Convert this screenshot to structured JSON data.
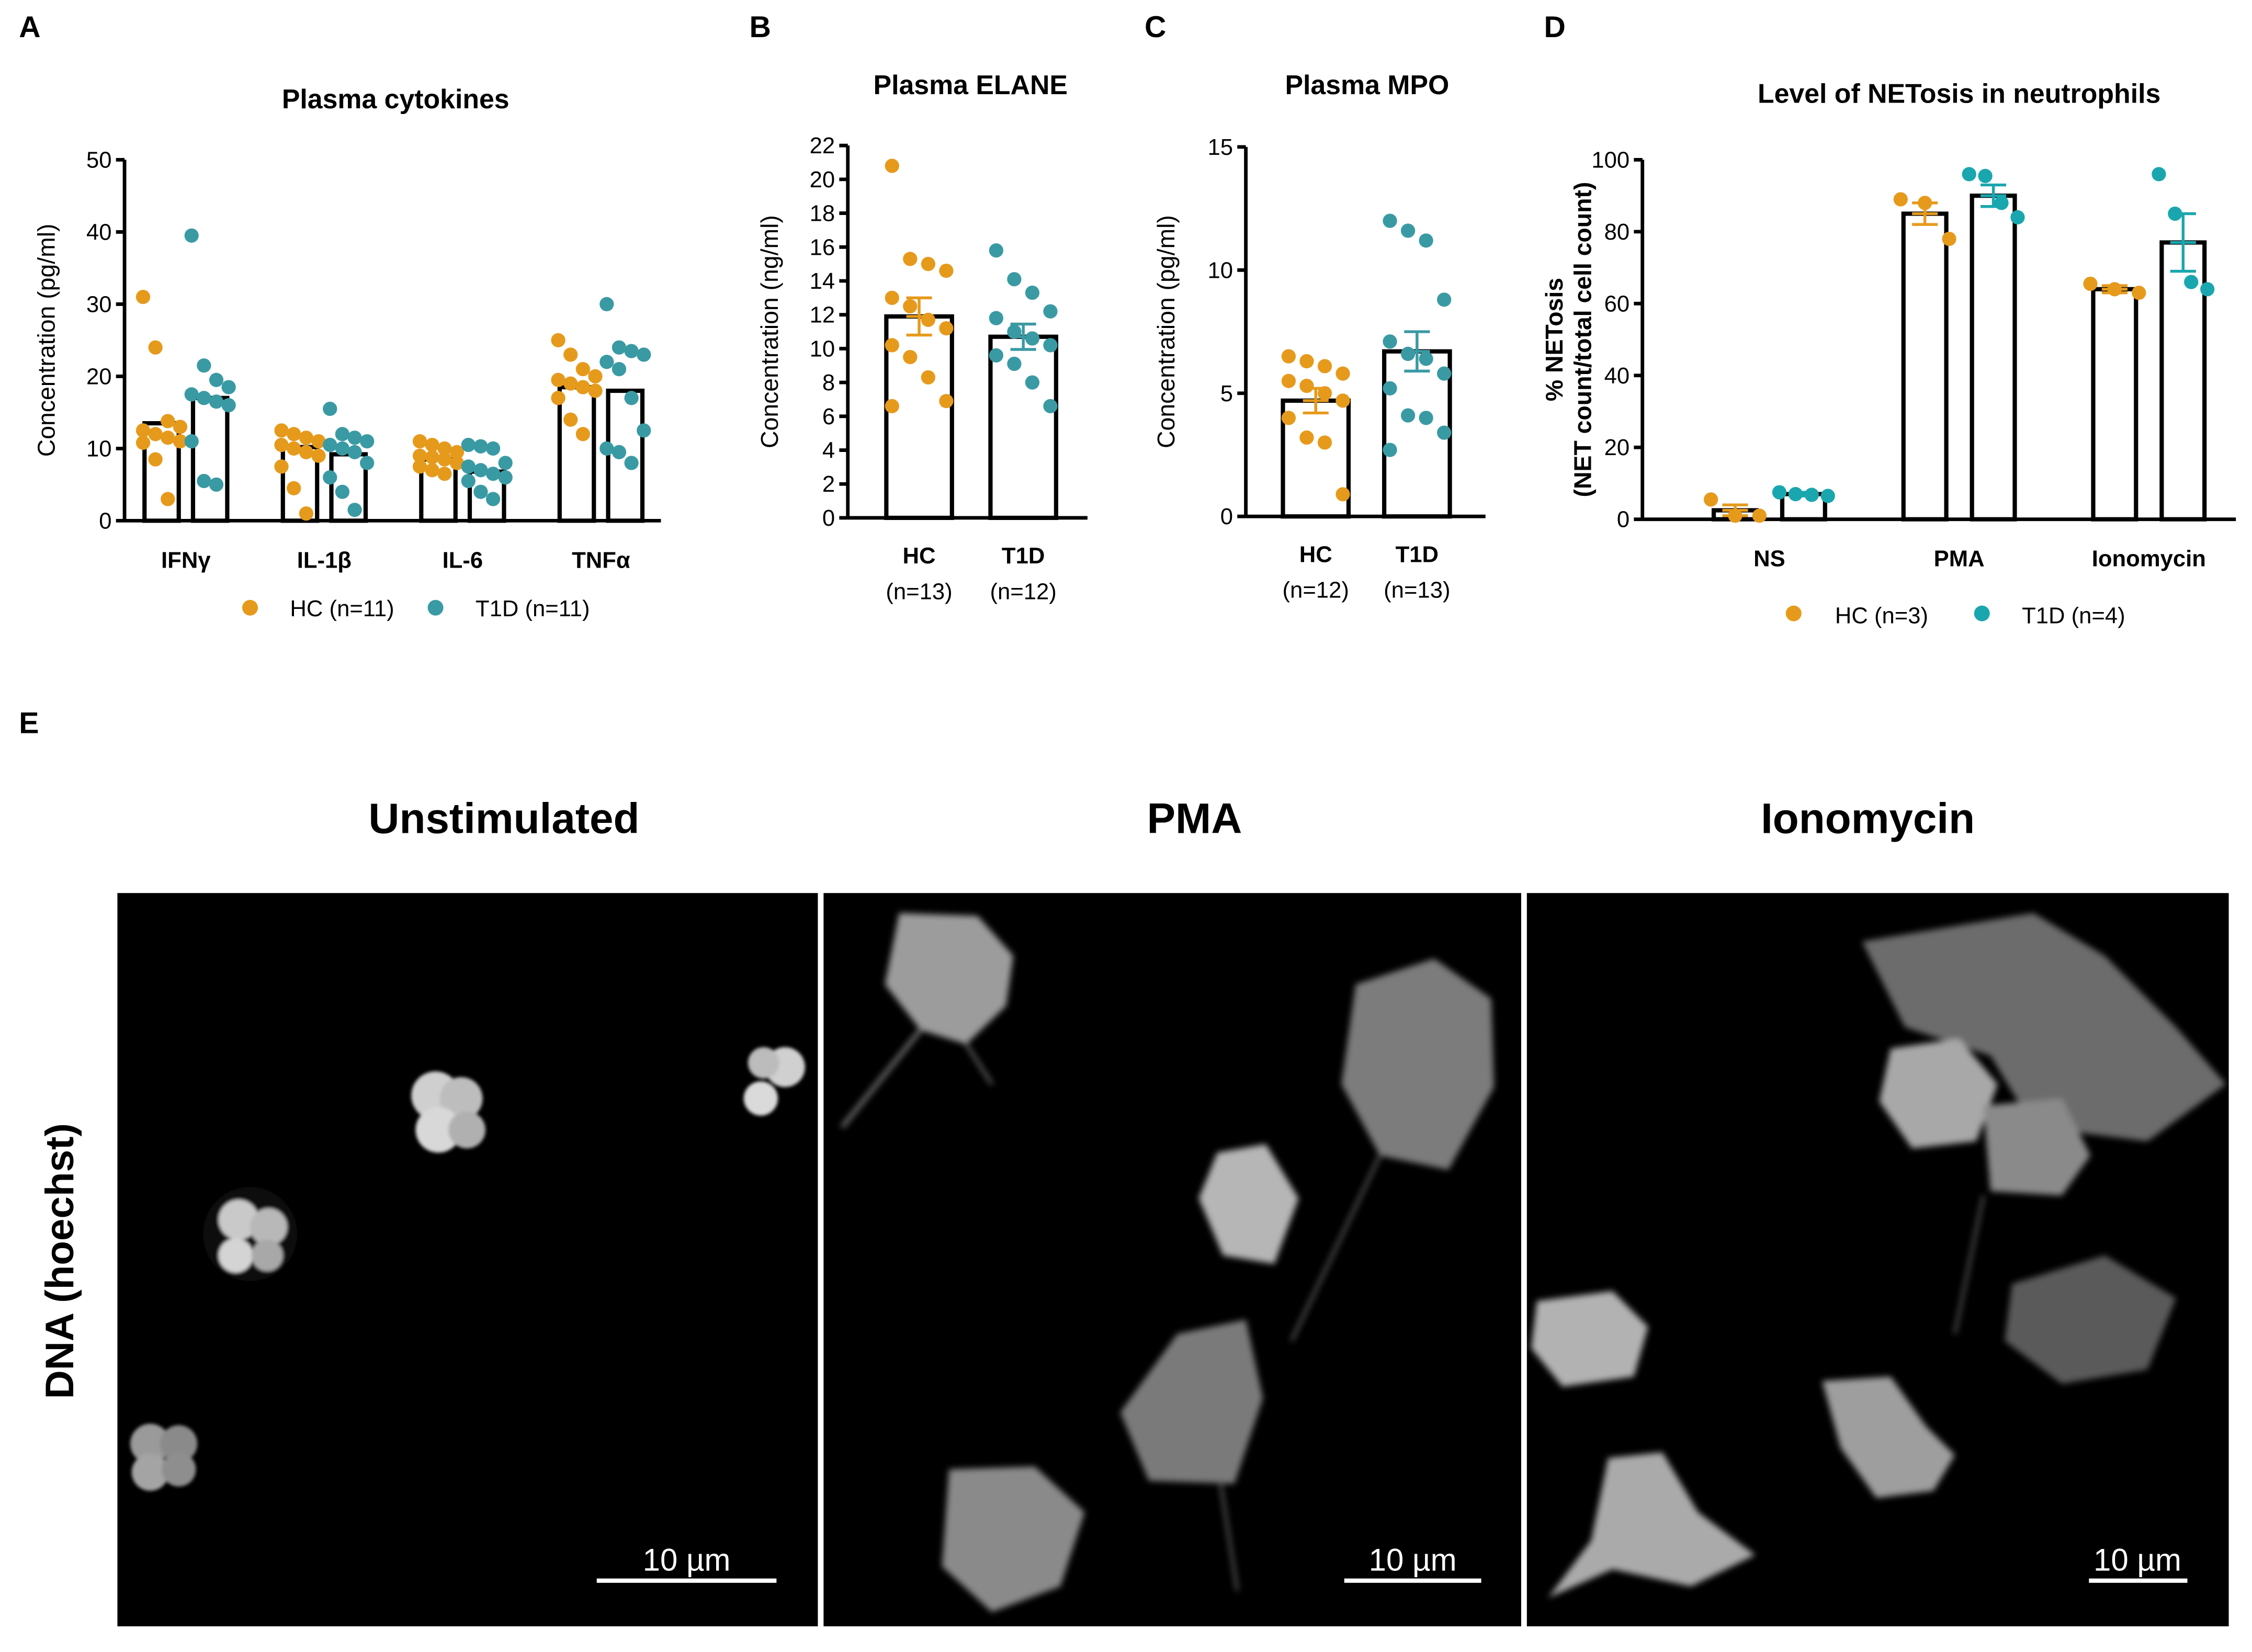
{
  "colors": {
    "hc": "#E69A1C",
    "t1d": "#3A9AA4",
    "t1d_bright": "#1AA6AE"
  },
  "panels": {
    "A": {
      "label": "A",
      "title": "Plasma cytokines"
    },
    "B": {
      "label": "B",
      "title": "Plasma ELANE"
    },
    "C": {
      "label": "C",
      "title": "Plasma MPO"
    },
    "D": {
      "label": "D",
      "title": "Level of NETosis in neutrophils"
    },
    "E": {
      "label": "E",
      "row_label": "DNA (hoechst)",
      "images": [
        {
          "title": "Unstimulated",
          "scale": "10 µm"
        },
        {
          "title": "PMA",
          "scale": "10 µm"
        },
        {
          "title": "Ionomycin",
          "scale": "10 µm"
        }
      ]
    }
  },
  "chart_data": [
    {
      "id": "A",
      "type": "bar",
      "title": "Plasma cytokines",
      "ylabel": "Concentration (pg/ml)",
      "ylim": [
        0,
        50
      ],
      "yticks": [
        0,
        10,
        20,
        30,
        40,
        50
      ],
      "categories": [
        "IFNγ",
        "IL-1β",
        "IL-6",
        "TNFα"
      ],
      "legend": [
        "HC (n=11)",
        "T1D (n=11)"
      ],
      "series": [
        {
          "name": "HC (n=11)",
          "means": [
            13.5,
            10.2,
            8.5,
            18.5
          ],
          "points": [
            [
              31,
              24,
              13.8,
              13,
              12.5,
              12,
              11.5,
              11,
              10.8,
              8.5,
              3
            ],
            [
              12.5,
              12,
              11.5,
              11,
              10.5,
              10,
              9.5,
              9,
              7.5,
              4.5,
              1
            ],
            [
              11,
              10.5,
              10,
              9.5,
              9,
              8.8,
              8.5,
              8,
              7.5,
              7,
              6.5
            ],
            [
              25,
              23,
              21,
              20,
              19.5,
              19,
              18.5,
              18,
              17,
              14,
              12
            ]
          ]
        },
        {
          "name": "T1D (n=11)",
          "means": [
            17,
            9.2,
            6.8,
            18
          ],
          "points": [
            [
              39.5,
              21.5,
              19.5,
              18.5,
              17.5,
              17,
              16.5,
              16,
              11,
              5.5,
              5
            ],
            [
              15.5,
              12,
              11.5,
              11,
              10.5,
              10,
              9.5,
              8,
              6,
              4,
              1.5
            ],
            [
              10.5,
              10.3,
              10,
              8,
              7.5,
              7,
              6.5,
              6,
              5.5,
              4,
              3
            ],
            [
              30,
              24,
              23.5,
              23,
              22,
              21,
              17,
              12.5,
              10,
              9.5,
              8
            ]
          ]
        }
      ]
    },
    {
      "id": "B",
      "type": "bar",
      "title": "Plasma ELANE",
      "ylabel": "Concentration (ng/ml)",
      "ylim": [
        0,
        22
      ],
      "yticks": [
        0,
        2,
        4,
        6,
        8,
        10,
        12,
        14,
        16,
        18,
        20,
        22
      ],
      "categories": [
        "HC",
        "T1D"
      ],
      "ns": [
        "(n=13)",
        "(n=12)"
      ],
      "means": [
        11.9,
        10.7
      ],
      "sem": [
        1.1,
        0.75
      ],
      "points": [
        [
          20.8,
          15.3,
          15,
          14.6,
          13,
          12.5,
          11.7,
          11.2,
          10.2,
          9.5,
          8.3,
          6.9,
          6.6
        ],
        [
          15.8,
          14.1,
          13.3,
          12.2,
          11.8,
          11,
          10.6,
          10.2,
          9.6,
          9.1,
          8,
          6.6
        ]
      ]
    },
    {
      "id": "C",
      "type": "bar",
      "title": "Plasma MPO",
      "ylabel": "Concentration (pg/ml)",
      "ylim": [
        0,
        15
      ],
      "yticks": [
        0,
        5,
        10,
        15
      ],
      "categories": [
        "HC",
        "T1D"
      ],
      "ns": [
        "(n=12)",
        "(n=13)"
      ],
      "means": [
        4.7,
        6.7
      ],
      "sem": [
        0.5,
        0.8
      ],
      "points": [
        [
          6.5,
          6.3,
          6.1,
          5.8,
          5.5,
          5.3,
          5,
          4.7,
          4,
          3.2,
          3,
          0.9
        ],
        [
          12,
          11.6,
          11.2,
          8.8,
          7.1,
          6.6,
          6.4,
          5.8,
          5.2,
          4.1,
          4,
          3.4,
          2.7
        ]
      ]
    },
    {
      "id": "D",
      "type": "bar",
      "title": "Level of NETosis in neutrophils",
      "ylabel": "% NETosis",
      "ylabel2": "(NET count/total cell count)",
      "ylim": [
        0,
        100
      ],
      "yticks": [
        0,
        20,
        40,
        60,
        80,
        100
      ],
      "categories": [
        "NS",
        "PMA",
        "Ionomycin"
      ],
      "legend": [
        "HC (n=3)",
        "T1D (n=4)"
      ],
      "series": [
        {
          "name": "HC (n=3)",
          "means": [
            2.5,
            85,
            64
          ],
          "sem": [
            1.5,
            3,
            1
          ],
          "points": [
            [
              5.5,
              1,
              1
            ],
            [
              89,
              88,
              78
            ],
            [
              65.5,
              64,
              63
            ]
          ]
        },
        {
          "name": "T1D (n=4)",
          "means": [
            7,
            90,
            77
          ],
          "sem": [
            0.5,
            3,
            8
          ],
          "points": [
            [
              7.5,
              7,
              6.8,
              6.5
            ],
            [
              96,
              95.5,
              88,
              84
            ],
            [
              96,
              85,
              66,
              64
            ]
          ]
        }
      ]
    }
  ]
}
